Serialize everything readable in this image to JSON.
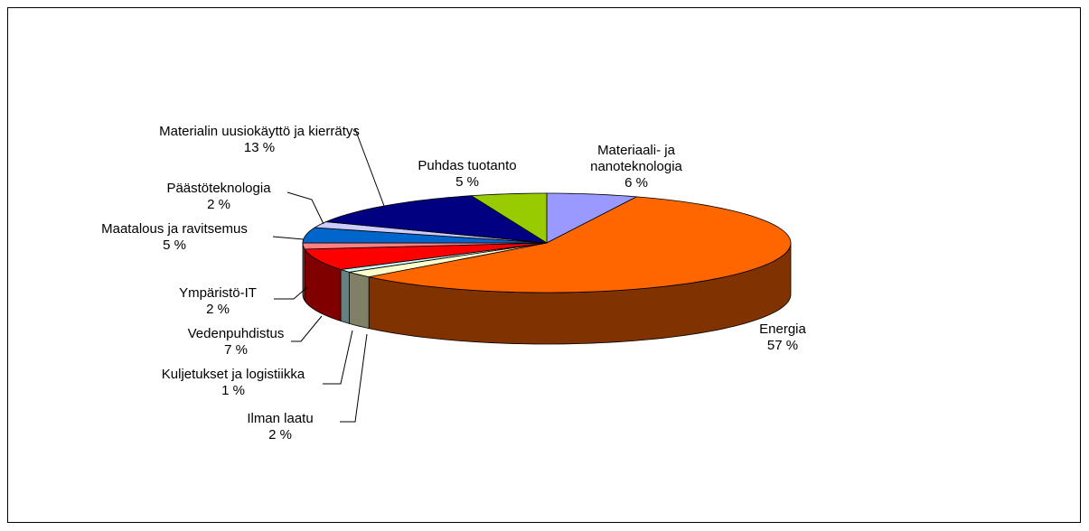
{
  "chart_data": {
    "type": "pie3d",
    "categories": [
      "Materiaali- ja nanoteknologia",
      "Energia",
      "Ilman laatu",
      "Kuljetukset ja logistiikka",
      "Vedenpuhdistus",
      "Ympäristö-IT",
      "Maatalous ja ravitsemus",
      "Päästöteknologia",
      "Materialin uusiokäyttö ja kierrätys",
      "Puhdas tuotanto"
    ],
    "values": [
      6,
      57,
      2,
      1,
      7,
      2,
      5,
      2,
      13,
      5
    ],
    "value_labels": [
      "6 %",
      "57 %",
      "2 %",
      "1 %",
      "7 %",
      "2 %",
      "5 %",
      "2 %",
      "13 %",
      "5 %"
    ],
    "colors": [
      "#9999ff",
      "#ff6600",
      "#ffffcc",
      "#ccffff",
      "#ff0000",
      "#ff8080",
      "#0066cc",
      "#ccccff",
      "#000080",
      "#99cc00"
    ]
  }
}
